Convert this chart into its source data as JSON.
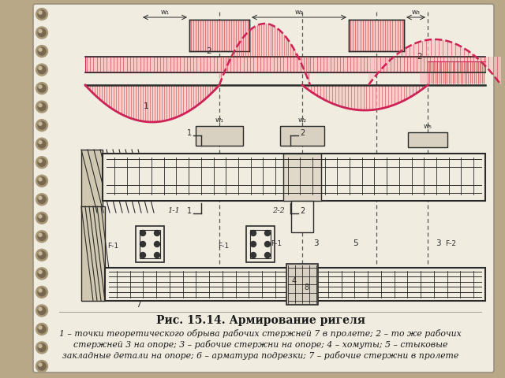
{
  "title": "Рис. 15.14. Армирование ригеля",
  "caption_line1": "1 – точки теоретического обрыва рабочих стержней 7 в пролете; 2 – то же рабочих",
  "caption_line2": "стержней 3 на опоре; 3 – рабочие стержни на опоре; 4 – хомуты; 5 – стыковые",
  "caption_line3": "закладные детали на опоре; 6 – арматура подрезки; 7 – рабочие стержни в пролете",
  "bg_color": "#b8a888",
  "page_color": "#f0ece0",
  "line_color": "#2a2a2a",
  "pink_color": "#cc2255",
  "fill_pink": "#e87090",
  "title_fontsize": 10,
  "caption_fontsize": 7.8
}
